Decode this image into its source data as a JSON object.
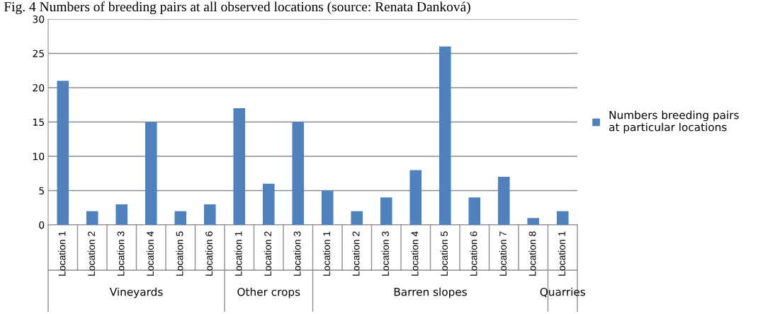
{
  "chart_data": {
    "type": "bar",
    "title": "Fig. 4 Numbers of breeding pairs at all observed locations (source: Renata Danková)",
    "categories": [
      "Location 1",
      "Location 2",
      "Location 3",
      "Location 4",
      "Location 5",
      "Location 6",
      "Location 1",
      "Location 2",
      "Location 3",
      "Location 1",
      "Location 2",
      "Location 3",
      "Location 4",
      "Location 5",
      "Location 6",
      "Location 7",
      "Location 8",
      "Location 1"
    ],
    "series": [
      {
        "name": "Numbers breeding pairs\nat particular locations",
        "color": "#4f81bd",
        "values": [
          21,
          2,
          3,
          15,
          2,
          3,
          17,
          6,
          15,
          5,
          2,
          4,
          8,
          26,
          4,
          7,
          1,
          2
        ]
      }
    ],
    "annotations": [
      "Vineyards",
      "Other crops",
      "Barren slopes",
      "Quarries"
    ],
    "ylim": [
      0,
      30
    ],
    "yticks": [
      0,
      5,
      10,
      15,
      20,
      25,
      30
    ],
    "grid": "y",
    "legend": "right"
  }
}
